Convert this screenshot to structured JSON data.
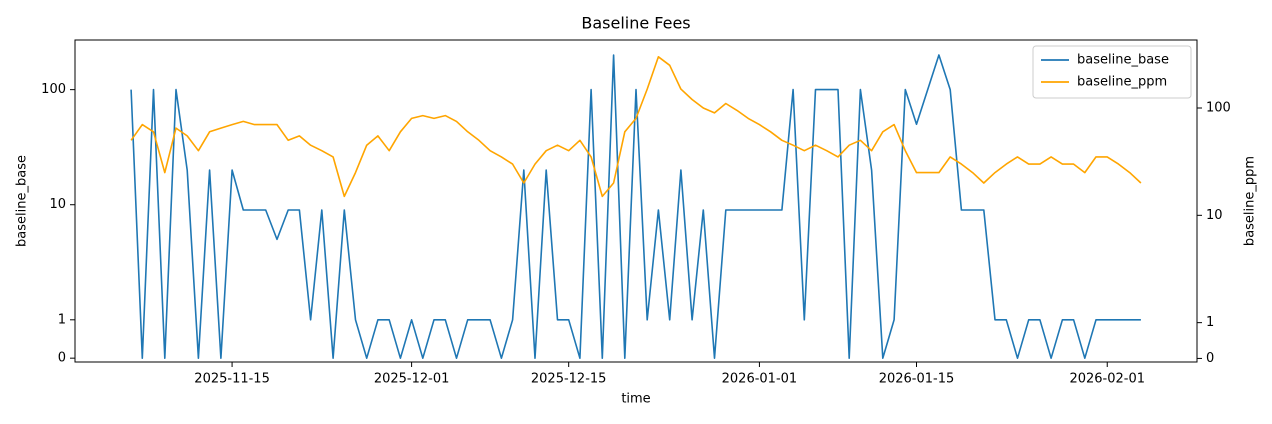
{
  "chart_data": {
    "type": "line",
    "title": "Baseline Fees",
    "xlabel": "time",
    "ylabel": "baseline_base",
    "y2label": "baseline_ppm",
    "x": [
      "2025-11-06",
      "2025-11-07",
      "2025-11-08",
      "2025-11-09",
      "2025-11-10",
      "2025-11-11",
      "2025-11-12",
      "2025-11-13",
      "2025-11-14",
      "2025-11-15",
      "2025-11-16",
      "2025-11-17",
      "2025-11-18",
      "2025-11-19",
      "2025-11-20",
      "2025-11-21",
      "2025-11-22",
      "2025-11-23",
      "2025-11-24",
      "2025-11-25",
      "2025-11-26",
      "2025-11-27",
      "2025-11-28",
      "2025-11-29",
      "2025-11-30",
      "2025-12-01",
      "2025-12-02",
      "2025-12-03",
      "2025-12-04",
      "2025-12-05",
      "2025-12-06",
      "2025-12-07",
      "2025-12-08",
      "2025-12-09",
      "2025-12-10",
      "2025-12-11",
      "2025-12-12",
      "2025-12-13",
      "2025-12-14",
      "2025-12-15",
      "2025-12-16",
      "2025-12-17",
      "2025-12-18",
      "2025-12-19",
      "2025-12-20",
      "2025-12-21",
      "2025-12-22",
      "2025-12-23",
      "2025-12-24",
      "2025-12-25",
      "2025-12-26",
      "2025-12-27",
      "2025-12-28",
      "2025-12-29",
      "2025-12-30",
      "2025-12-31",
      "2026-01-01",
      "2026-01-02",
      "2026-01-03",
      "2026-01-04",
      "2026-01-05",
      "2026-01-06",
      "2026-01-07",
      "2026-01-08",
      "2026-01-09",
      "2026-01-10",
      "2026-01-11",
      "2026-01-12",
      "2026-01-13",
      "2026-01-14",
      "2026-01-15",
      "2026-01-16",
      "2026-01-17",
      "2026-01-18",
      "2026-01-19",
      "2026-01-20",
      "2026-01-21",
      "2026-01-22",
      "2026-01-23",
      "2026-01-24",
      "2026-01-25",
      "2026-01-26",
      "2026-01-27",
      "2026-01-28",
      "2026-01-29",
      "2026-01-30",
      "2026-01-31",
      "2026-02-01",
      "2026-02-02",
      "2026-02-03",
      "2026-02-04"
    ],
    "series": [
      {
        "name": "baseline_base",
        "color": "#1f77b4",
        "axis": "y",
        "values": [
          100,
          0,
          100,
          0,
          100,
          20,
          0,
          20,
          0,
          20,
          9,
          9,
          9,
          5,
          9,
          9,
          1,
          9,
          0,
          9,
          1,
          0,
          1,
          1,
          0,
          1,
          0,
          1,
          1,
          0,
          1,
          1,
          1,
          0,
          1,
          20,
          0,
          20,
          1,
          1,
          0,
          100,
          0,
          200,
          0,
          100,
          1,
          9,
          1,
          20,
          1,
          9,
          0,
          9,
          9,
          9,
          9,
          9,
          9,
          100,
          1,
          100,
          100,
          100,
          0,
          100,
          20,
          0,
          1,
          100,
          50,
          100,
          200,
          100,
          9,
          9,
          9,
          1,
          1,
          0,
          1,
          1,
          0,
          1,
          1,
          0,
          1,
          1,
          1,
          1,
          1
        ]
      },
      {
        "name": "baseline_ppm",
        "color": "#ffa500",
        "axis": "y2",
        "values": [
          50,
          70,
          60,
          25,
          65,
          55,
          40,
          60,
          65,
          70,
          75,
          70,
          70,
          70,
          50,
          55,
          45,
          40,
          35,
          15,
          25,
          45,
          55,
          40,
          60,
          80,
          85,
          80,
          85,
          75,
          60,
          50,
          40,
          35,
          30,
          20,
          30,
          40,
          45,
          40,
          50,
          35,
          15,
          20,
          60,
          80,
          150,
          300,
          250,
          150,
          120,
          100,
          90,
          110,
          95,
          80,
          70,
          60,
          50,
          45,
          40,
          45,
          40,
          35,
          45,
          50,
          40,
          60,
          70,
          40,
          25,
          25,
          25,
          35,
          30,
          25,
          20,
          25,
          30,
          35,
          30,
          30,
          35,
          30,
          30,
          25,
          35,
          35,
          30,
          25,
          20
        ]
      }
    ],
    "xlim": [
      "2025-11-01",
      "2026-02-09"
    ],
    "xticks": [
      "2025-11-15",
      "2025-12-01",
      "2025-12-15",
      "2026-01-01",
      "2026-01-15",
      "2026-02-01"
    ],
    "yscale": "symlog",
    "linthresh": 1,
    "linscale": 0.3,
    "ylim": [
      -0.1,
      270
    ],
    "yticks": [
      0,
      1,
      10,
      100
    ],
    "y2lim": [
      -0.1,
      430
    ],
    "y2ticks": [
      0,
      1,
      10,
      100
    ],
    "legend": "upper right"
  }
}
